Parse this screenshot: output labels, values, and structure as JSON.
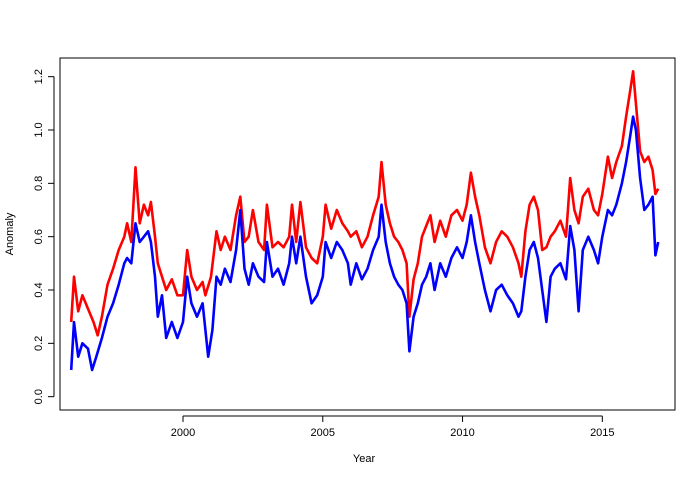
{
  "chart_data": {
    "type": "line",
    "title": "",
    "xlabel": "Year",
    "ylabel": "Anomaly",
    "xlim": [
      1995.6,
      2017.6
    ],
    "ylim": [
      -0.05,
      1.27
    ],
    "grid": false,
    "legend": "none",
    "x_ticks": [
      {
        "value": 2000,
        "label": "2000"
      },
      {
        "value": 2005,
        "label": "2005"
      },
      {
        "value": 2010,
        "label": "2010"
      },
      {
        "value": 2015,
        "label": "2015"
      }
    ],
    "y_ticks": [
      {
        "value": 0.0,
        "label": "0.0"
      },
      {
        "value": 0.2,
        "label": "0.2"
      },
      {
        "value": 0.4,
        "label": "0.4"
      },
      {
        "value": 0.6,
        "label": "0.6"
      },
      {
        "value": 0.8,
        "label": "0.8"
      },
      {
        "value": 1.0,
        "label": "1.0"
      },
      {
        "value": 1.2,
        "label": "1.2"
      }
    ],
    "series": [
      {
        "color": "#ff0000",
        "points": [
          [
            1996.0,
            0.28
          ],
          [
            1996.1,
            0.45
          ],
          [
            1996.25,
            0.32
          ],
          [
            1996.4,
            0.38
          ],
          [
            1996.6,
            0.33
          ],
          [
            1996.8,
            0.28
          ],
          [
            1996.95,
            0.23
          ],
          [
            1997.1,
            0.3
          ],
          [
            1997.3,
            0.42
          ],
          [
            1997.5,
            0.48
          ],
          [
            1997.7,
            0.55
          ],
          [
            1997.9,
            0.6
          ],
          [
            1998.0,
            0.65
          ],
          [
            1998.15,
            0.58
          ],
          [
            1998.3,
            0.86
          ],
          [
            1998.45,
            0.65
          ],
          [
            1998.6,
            0.72
          ],
          [
            1998.75,
            0.68
          ],
          [
            1998.85,
            0.73
          ],
          [
            1999.0,
            0.6
          ],
          [
            1999.1,
            0.5
          ],
          [
            1999.25,
            0.45
          ],
          [
            1999.4,
            0.4
          ],
          [
            1999.6,
            0.44
          ],
          [
            1999.8,
            0.38
          ],
          [
            2000.0,
            0.38
          ],
          [
            2000.15,
            0.55
          ],
          [
            2000.3,
            0.45
          ],
          [
            2000.5,
            0.4
          ],
          [
            2000.7,
            0.43
          ],
          [
            2000.8,
            0.38
          ],
          [
            2001.0,
            0.45
          ],
          [
            2001.2,
            0.62
          ],
          [
            2001.35,
            0.55
          ],
          [
            2001.5,
            0.6
          ],
          [
            2001.7,
            0.55
          ],
          [
            2001.9,
            0.68
          ],
          [
            2002.05,
            0.75
          ],
          [
            2002.2,
            0.58
          ],
          [
            2002.35,
            0.6
          ],
          [
            2002.5,
            0.7
          ],
          [
            2002.7,
            0.58
          ],
          [
            2002.9,
            0.55
          ],
          [
            2003.0,
            0.72
          ],
          [
            2003.2,
            0.56
          ],
          [
            2003.4,
            0.58
          ],
          [
            2003.6,
            0.56
          ],
          [
            2003.8,
            0.6
          ],
          [
            2003.9,
            0.72
          ],
          [
            2004.05,
            0.58
          ],
          [
            2004.2,
            0.73
          ],
          [
            2004.4,
            0.56
          ],
          [
            2004.6,
            0.52
          ],
          [
            2004.8,
            0.5
          ],
          [
            2005.0,
            0.6
          ],
          [
            2005.1,
            0.72
          ],
          [
            2005.3,
            0.63
          ],
          [
            2005.5,
            0.7
          ],
          [
            2005.7,
            0.65
          ],
          [
            2005.9,
            0.62
          ],
          [
            2006.0,
            0.6
          ],
          [
            2006.2,
            0.62
          ],
          [
            2006.4,
            0.56
          ],
          [
            2006.6,
            0.6
          ],
          [
            2006.8,
            0.68
          ],
          [
            2007.0,
            0.75
          ],
          [
            2007.1,
            0.88
          ],
          [
            2007.25,
            0.72
          ],
          [
            2007.4,
            0.65
          ],
          [
            2007.55,
            0.6
          ],
          [
            2007.7,
            0.58
          ],
          [
            2007.85,
            0.55
          ],
          [
            2008.0,
            0.5
          ],
          [
            2008.1,
            0.3
          ],
          [
            2008.25,
            0.44
          ],
          [
            2008.4,
            0.5
          ],
          [
            2008.55,
            0.6
          ],
          [
            2008.7,
            0.64
          ],
          [
            2008.85,
            0.68
          ],
          [
            2009.0,
            0.58
          ],
          [
            2009.2,
            0.66
          ],
          [
            2009.4,
            0.6
          ],
          [
            2009.6,
            0.68
          ],
          [
            2009.8,
            0.7
          ],
          [
            2010.0,
            0.66
          ],
          [
            2010.15,
            0.72
          ],
          [
            2010.3,
            0.84
          ],
          [
            2010.45,
            0.75
          ],
          [
            2010.6,
            0.68
          ],
          [
            2010.8,
            0.56
          ],
          [
            2011.0,
            0.5
          ],
          [
            2011.2,
            0.58
          ],
          [
            2011.4,
            0.62
          ],
          [
            2011.6,
            0.6
          ],
          [
            2011.8,
            0.56
          ],
          [
            2012.0,
            0.5
          ],
          [
            2012.1,
            0.45
          ],
          [
            2012.25,
            0.62
          ],
          [
            2012.4,
            0.72
          ],
          [
            2012.55,
            0.75
          ],
          [
            2012.7,
            0.7
          ],
          [
            2012.85,
            0.55
          ],
          [
            2013.0,
            0.56
          ],
          [
            2013.15,
            0.6
          ],
          [
            2013.3,
            0.62
          ],
          [
            2013.5,
            0.66
          ],
          [
            2013.7,
            0.6
          ],
          [
            2013.85,
            0.82
          ],
          [
            2014.0,
            0.7
          ],
          [
            2014.15,
            0.65
          ],
          [
            2014.3,
            0.75
          ],
          [
            2014.5,
            0.78
          ],
          [
            2014.7,
            0.7
          ],
          [
            2014.85,
            0.68
          ],
          [
            2015.0,
            0.76
          ],
          [
            2015.2,
            0.9
          ],
          [
            2015.35,
            0.82
          ],
          [
            2015.5,
            0.88
          ],
          [
            2015.7,
            0.94
          ],
          [
            2015.85,
            1.05
          ],
          [
            2016.0,
            1.15
          ],
          [
            2016.1,
            1.22
          ],
          [
            2016.2,
            1.1
          ],
          [
            2016.35,
            0.92
          ],
          [
            2016.5,
            0.88
          ],
          [
            2016.65,
            0.9
          ],
          [
            2016.8,
            0.85
          ],
          [
            2016.9,
            0.76
          ],
          [
            2017.0,
            0.78
          ]
        ]
      },
      {
        "color": "#0000ff",
        "points": [
          [
            1996.0,
            0.1
          ],
          [
            1996.1,
            0.28
          ],
          [
            1996.25,
            0.15
          ],
          [
            1996.4,
            0.2
          ],
          [
            1996.6,
            0.18
          ],
          [
            1996.75,
            0.1
          ],
          [
            1996.9,
            0.15
          ],
          [
            1997.1,
            0.22
          ],
          [
            1997.3,
            0.3
          ],
          [
            1997.5,
            0.35
          ],
          [
            1997.7,
            0.42
          ],
          [
            1997.9,
            0.5
          ],
          [
            1998.0,
            0.52
          ],
          [
            1998.15,
            0.5
          ],
          [
            1998.3,
            0.65
          ],
          [
            1998.45,
            0.58
          ],
          [
            1998.6,
            0.6
          ],
          [
            1998.75,
            0.62
          ],
          [
            1998.85,
            0.58
          ],
          [
            1999.0,
            0.45
          ],
          [
            1999.1,
            0.3
          ],
          [
            1999.25,
            0.38
          ],
          [
            1999.4,
            0.22
          ],
          [
            1999.6,
            0.28
          ],
          [
            1999.8,
            0.22
          ],
          [
            2000.0,
            0.28
          ],
          [
            2000.15,
            0.45
          ],
          [
            2000.3,
            0.35
          ],
          [
            2000.5,
            0.3
          ],
          [
            2000.7,
            0.35
          ],
          [
            2000.9,
            0.15
          ],
          [
            2001.05,
            0.25
          ],
          [
            2001.2,
            0.45
          ],
          [
            2001.35,
            0.42
          ],
          [
            2001.5,
            0.48
          ],
          [
            2001.7,
            0.43
          ],
          [
            2001.9,
            0.55
          ],
          [
            2002.05,
            0.7
          ],
          [
            2002.2,
            0.48
          ],
          [
            2002.35,
            0.42
          ],
          [
            2002.5,
            0.5
          ],
          [
            2002.7,
            0.45
          ],
          [
            2002.9,
            0.43
          ],
          [
            2003.0,
            0.58
          ],
          [
            2003.2,
            0.45
          ],
          [
            2003.4,
            0.48
          ],
          [
            2003.6,
            0.42
          ],
          [
            2003.8,
            0.5
          ],
          [
            2003.9,
            0.6
          ],
          [
            2004.05,
            0.5
          ],
          [
            2004.2,
            0.6
          ],
          [
            2004.4,
            0.45
          ],
          [
            2004.6,
            0.35
          ],
          [
            2004.8,
            0.38
          ],
          [
            2005.0,
            0.45
          ],
          [
            2005.1,
            0.58
          ],
          [
            2005.3,
            0.52
          ],
          [
            2005.5,
            0.58
          ],
          [
            2005.7,
            0.55
          ],
          [
            2005.9,
            0.5
          ],
          [
            2006.0,
            0.42
          ],
          [
            2006.2,
            0.5
          ],
          [
            2006.4,
            0.44
          ],
          [
            2006.6,
            0.48
          ],
          [
            2006.8,
            0.55
          ],
          [
            2007.0,
            0.6
          ],
          [
            2007.1,
            0.72
          ],
          [
            2007.25,
            0.58
          ],
          [
            2007.4,
            0.5
          ],
          [
            2007.55,
            0.45
          ],
          [
            2007.7,
            0.42
          ],
          [
            2007.85,
            0.4
          ],
          [
            2008.0,
            0.35
          ],
          [
            2008.1,
            0.17
          ],
          [
            2008.25,
            0.3
          ],
          [
            2008.4,
            0.35
          ],
          [
            2008.55,
            0.42
          ],
          [
            2008.7,
            0.45
          ],
          [
            2008.85,
            0.5
          ],
          [
            2009.0,
            0.4
          ],
          [
            2009.2,
            0.5
          ],
          [
            2009.4,
            0.45
          ],
          [
            2009.6,
            0.52
          ],
          [
            2009.8,
            0.56
          ],
          [
            2010.0,
            0.52
          ],
          [
            2010.15,
            0.58
          ],
          [
            2010.3,
            0.68
          ],
          [
            2010.45,
            0.58
          ],
          [
            2010.6,
            0.5
          ],
          [
            2010.8,
            0.4
          ],
          [
            2011.0,
            0.32
          ],
          [
            2011.2,
            0.4
          ],
          [
            2011.4,
            0.42
          ],
          [
            2011.6,
            0.38
          ],
          [
            2011.8,
            0.35
          ],
          [
            2012.0,
            0.3
          ],
          [
            2012.1,
            0.32
          ],
          [
            2012.25,
            0.45
          ],
          [
            2012.4,
            0.55
          ],
          [
            2012.55,
            0.58
          ],
          [
            2012.7,
            0.52
          ],
          [
            2012.85,
            0.4
          ],
          [
            2013.0,
            0.28
          ],
          [
            2013.15,
            0.45
          ],
          [
            2013.3,
            0.48
          ],
          [
            2013.5,
            0.5
          ],
          [
            2013.7,
            0.44
          ],
          [
            2013.85,
            0.64
          ],
          [
            2014.0,
            0.55
          ],
          [
            2014.15,
            0.32
          ],
          [
            2014.3,
            0.55
          ],
          [
            2014.5,
            0.6
          ],
          [
            2014.7,
            0.55
          ],
          [
            2014.85,
            0.5
          ],
          [
            2015.0,
            0.6
          ],
          [
            2015.2,
            0.7
          ],
          [
            2015.35,
            0.68
          ],
          [
            2015.5,
            0.72
          ],
          [
            2015.7,
            0.8
          ],
          [
            2015.85,
            0.88
          ],
          [
            2016.0,
            0.98
          ],
          [
            2016.1,
            1.05
          ],
          [
            2016.2,
            1.0
          ],
          [
            2016.35,
            0.82
          ],
          [
            2016.5,
            0.7
          ],
          [
            2016.65,
            0.72
          ],
          [
            2016.8,
            0.75
          ],
          [
            2016.9,
            0.53
          ],
          [
            2017.0,
            0.58
          ]
        ]
      }
    ]
  }
}
